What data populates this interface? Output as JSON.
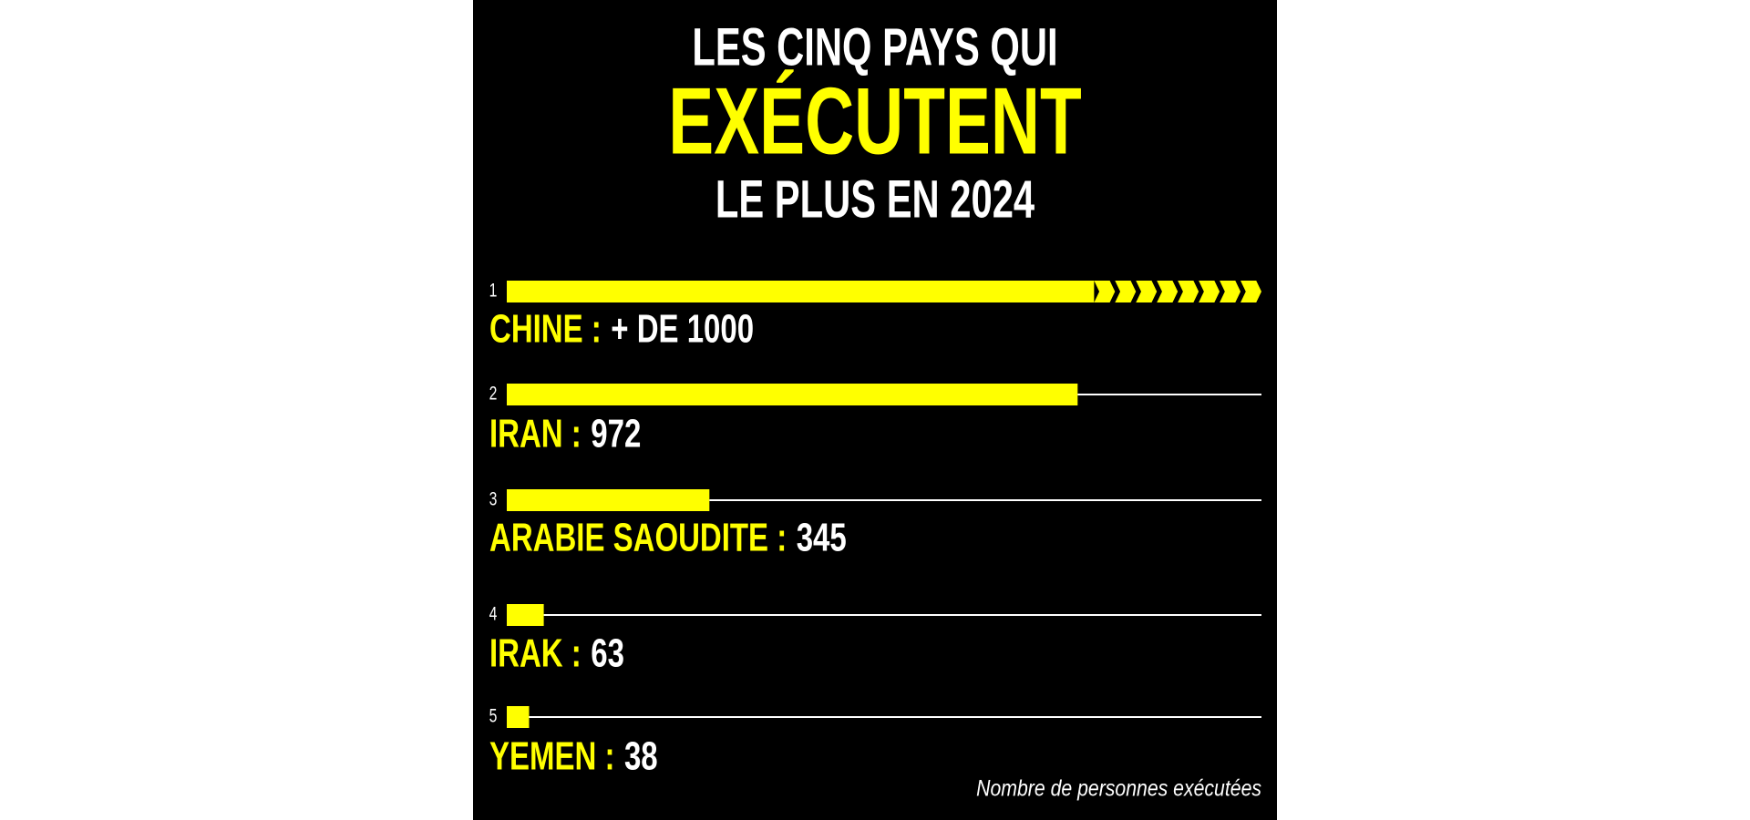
{
  "chart_data": {
    "type": "bar",
    "orientation": "horizontal",
    "title": [
      "LES CINQ PAYS QUI",
      "EXÉCUTENT",
      "LE PLUS EN 2024"
    ],
    "ranks": [
      "1",
      "2",
      "3",
      "4",
      "5"
    ],
    "categories": [
      "CHINE :",
      "IRAN :",
      "ARABIE SAOUDITE :",
      "IRAK :",
      "YEMEN :"
    ],
    "values": [
      1000,
      972,
      345,
      63,
      38
    ],
    "value_labels": [
      "+ DE 1000",
      "972",
      "345",
      "63",
      "38"
    ],
    "xlim": [
      0,
      1285
    ],
    "color": "#ffff00",
    "note": "Nombre de personnes exécutées"
  }
}
